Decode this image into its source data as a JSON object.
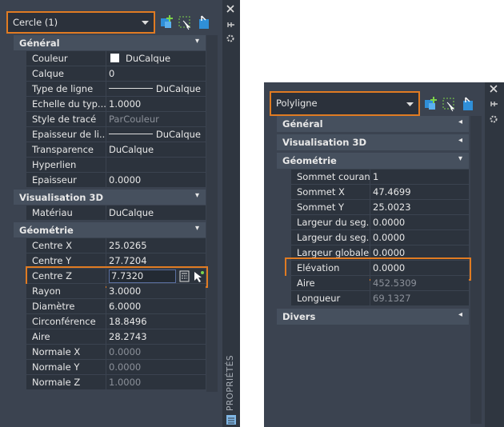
{
  "left_panel": {
    "selector": "Cercle (1)",
    "side_title": "PROPRIÉTÉS",
    "sections": [
      {
        "title": "Général",
        "rows": [
          {
            "name": "Couleur",
            "value": "DuCalque"
          },
          {
            "name": "Calque",
            "value": "0"
          },
          {
            "name": "Type de ligne",
            "value": "DuCalque"
          },
          {
            "name": "Echelle du typ...",
            "value": "1.0000"
          },
          {
            "name": "Style de tracé",
            "value": "ParCouleur"
          },
          {
            "name": "Epaisseur de li...",
            "value": "DuCalque"
          },
          {
            "name": "Transparence",
            "value": "DuCalque"
          },
          {
            "name": "Hyperlien",
            "value": ""
          },
          {
            "name": "Epaisseur",
            "value": "0.0000"
          }
        ]
      },
      {
        "title": "Visualisation 3D",
        "rows": [
          {
            "name": "Matériau",
            "value": "DuCalque"
          }
        ]
      },
      {
        "title": "Géométrie",
        "rows": [
          {
            "name": "Centre X",
            "value": "25.0265"
          },
          {
            "name": "Centre Y",
            "value": "27.7204"
          },
          {
            "name": "Centre Z",
            "value": "7.7320"
          },
          {
            "name": "Rayon",
            "value": "3.0000"
          },
          {
            "name": "Diamètre",
            "value": "6.0000"
          },
          {
            "name": "Circonférence",
            "value": "18.8496"
          },
          {
            "name": "Aire",
            "value": "28.2743"
          },
          {
            "name": "Normale X",
            "value": "0.0000"
          },
          {
            "name": "Normale Y",
            "value": "0.0000"
          },
          {
            "name": "Normale Z",
            "value": "1.0000"
          }
        ]
      }
    ]
  },
  "right_panel": {
    "selector": "Polyligne",
    "sections": [
      {
        "title": "Général"
      },
      {
        "title": "Visualisation 3D"
      },
      {
        "title": "Géométrie",
        "rows": [
          {
            "name": "Sommet courant",
            "value": "1"
          },
          {
            "name": "Sommet X",
            "value": "47.4699"
          },
          {
            "name": "Sommet Y",
            "value": "25.0023"
          },
          {
            "name": "Largeur du seg...",
            "value": "0.0000"
          },
          {
            "name": "Largeur du seg...",
            "value": "0.0000"
          },
          {
            "name": "Largeur globale",
            "value": "0.0000"
          },
          {
            "name": "Elévation",
            "value": "0.0000"
          },
          {
            "name": "Aire",
            "value": "452.5309"
          },
          {
            "name": "Longueur",
            "value": "69.1327"
          }
        ]
      },
      {
        "title": "Divers"
      }
    ]
  }
}
